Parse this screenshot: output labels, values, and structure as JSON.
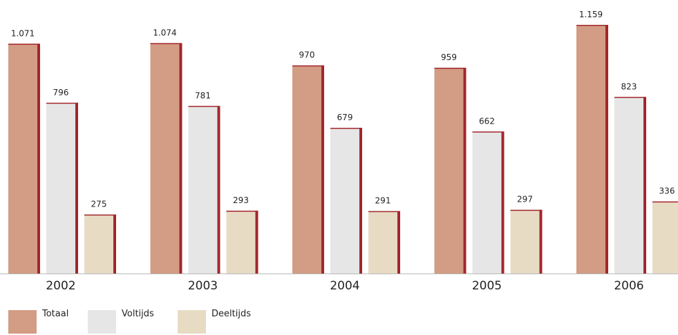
{
  "chart_data": {
    "type": "bar",
    "categories": [
      "2002",
      "2003",
      "2004",
      "2005",
      "2006"
    ],
    "series": [
      {
        "name": "Totaal",
        "values": [
          1071,
          1074,
          970,
          959,
          1159
        ],
        "color": "#d39c84"
      },
      {
        "name": "Voltijds",
        "values": [
          796,
          781,
          679,
          662,
          823
        ],
        "color": "#e6e6e6"
      },
      {
        "name": "Deeltijds",
        "values": [
          275,
          293,
          291,
          297,
          336
        ],
        "color": "#e8dbc4"
      }
    ],
    "value_labels": [
      [
        "1.071",
        "1.074",
        "970",
        "959",
        "1.159"
      ],
      [
        "796",
        "781",
        "679",
        "662",
        "823"
      ],
      [
        "275",
        "293",
        "291",
        "297",
        "336"
      ]
    ],
    "edge_color": "#a3262c",
    "ylim": [
      0,
      1159
    ],
    "grid": false,
    "legend_position": "bottom-left"
  }
}
